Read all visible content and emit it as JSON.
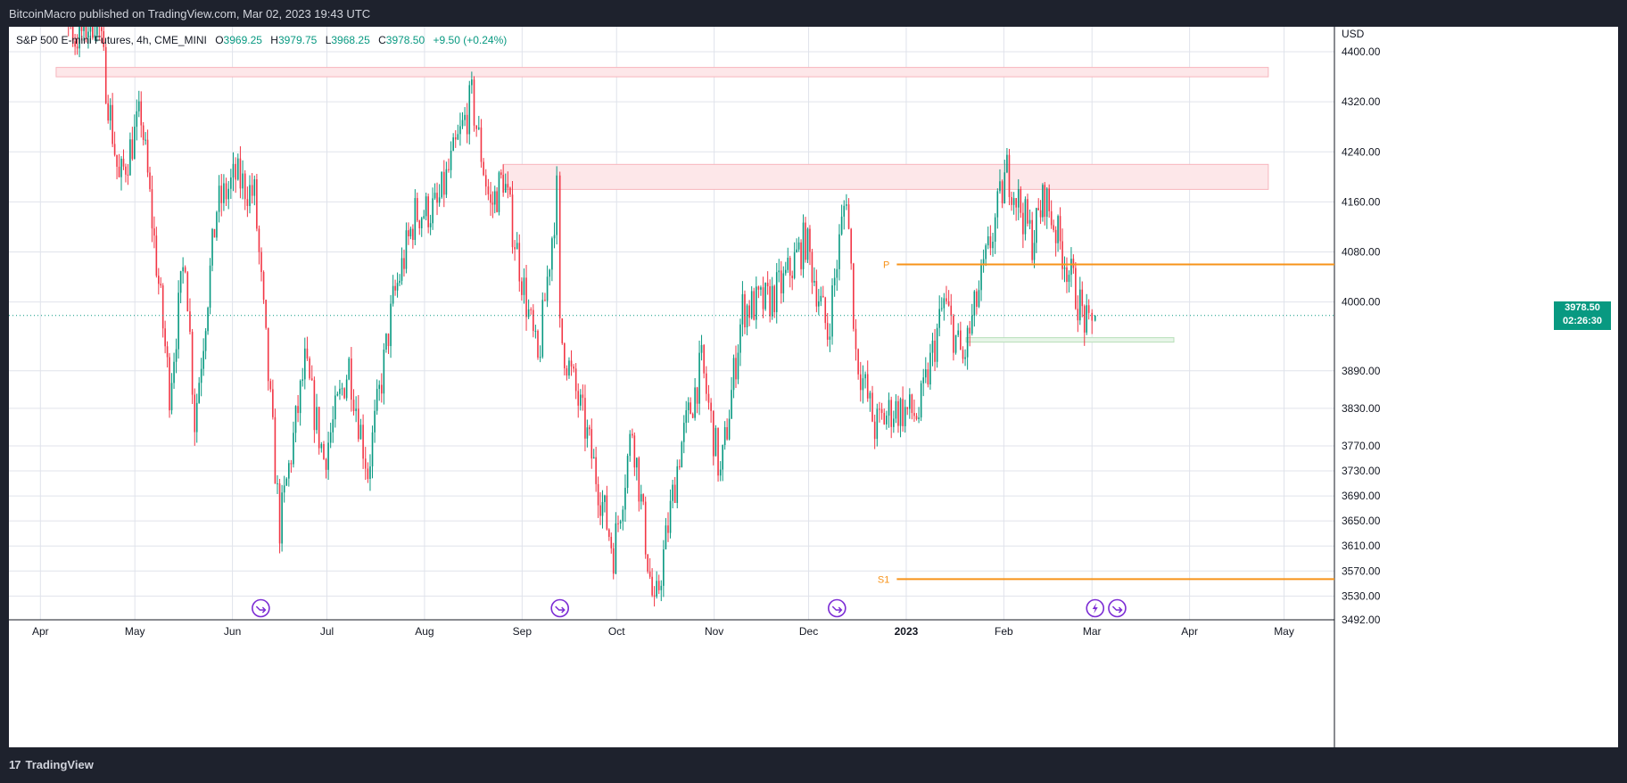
{
  "header": {
    "published_text": "BitcoinMacro published on TradingView.com, Mar 02, 2023 19:43 UTC"
  },
  "footer": {
    "brand_text": "TradingView",
    "brand_mark": "17"
  },
  "legend": {
    "symbol": "S&P 500 E-mini Futures, 4h, CME_MINI",
    "open_label": "O",
    "open": "3969.25",
    "high_label": "H",
    "high": "3979.75",
    "low_label": "L",
    "low": "3968.25",
    "close_label": "C",
    "close": "3978.50",
    "change": "+9.50 (+0.24%)"
  },
  "price_tag": {
    "price": "3978.50",
    "countdown": "02:26:30"
  },
  "colors": {
    "up": "#089981",
    "down": "#f23645",
    "level": "#f7931a",
    "grid": "#e0e3eb",
    "zone_red": "#fde7e9",
    "zone_green": "#e8f5e9"
  },
  "chart_data": {
    "type": "line",
    "title": "S&P 500 E-mini Futures, 4h, CME_MINI",
    "currency": "USD",
    "ylim": [
      3492,
      4440
    ],
    "y_ticks": [
      "4400.00",
      "4320.00",
      "4240.00",
      "4160.00",
      "4080.00",
      "4000.00",
      "3890.00",
      "3830.00",
      "3770.00",
      "3730.00",
      "3690.00",
      "3650.00",
      "3610.00",
      "3570.00",
      "3530.00",
      "3492.00"
    ],
    "x_ticks": [
      "Apr",
      "May",
      "Jun",
      "Jul",
      "Aug",
      "Sep",
      "Oct",
      "Nov",
      "Dec",
      "2023",
      "Feb",
      "Mar",
      "Apr",
      "May"
    ],
    "x_tick_dates": [
      "2022-04-01",
      "2022-05-01",
      "2022-06-01",
      "2022-07-01",
      "2022-08-01",
      "2022-09-01",
      "2022-10-01",
      "2022-11-01",
      "2022-12-01",
      "2023-01-01",
      "2023-02-01",
      "2023-03-01",
      "2023-04-01",
      "2023-05-01"
    ],
    "price_path": [
      {
        "date": "2022-03-29",
        "price": 4625
      },
      {
        "date": "2022-04-05",
        "price": 4540
      },
      {
        "date": "2022-04-12",
        "price": 4420
      },
      {
        "date": "2022-04-19",
        "price": 4460
      },
      {
        "date": "2022-04-26",
        "price": 4190
      },
      {
        "date": "2022-05-03",
        "price": 4300
      },
      {
        "date": "2022-05-12",
        "price": 3860
      },
      {
        "date": "2022-05-17",
        "price": 4080
      },
      {
        "date": "2022-05-20",
        "price": 3810
      },
      {
        "date": "2022-05-27",
        "price": 4150
      },
      {
        "date": "2022-06-02",
        "price": 4200
      },
      {
        "date": "2022-06-08",
        "price": 4170
      },
      {
        "date": "2022-06-16",
        "price": 3640
      },
      {
        "date": "2022-06-24",
        "price": 3900
      },
      {
        "date": "2022-06-30",
        "price": 3750
      },
      {
        "date": "2022-07-08",
        "price": 3900
      },
      {
        "date": "2022-07-14",
        "price": 3730
      },
      {
        "date": "2022-07-22",
        "price": 4000
      },
      {
        "date": "2022-07-29",
        "price": 4140
      },
      {
        "date": "2022-08-05",
        "price": 4150
      },
      {
        "date": "2022-08-16",
        "price": 4325
      },
      {
        "date": "2022-08-22",
        "price": 4150
      },
      {
        "date": "2022-08-26",
        "price": 4200
      },
      {
        "date": "2022-09-06",
        "price": 3900
      },
      {
        "date": "2022-09-12",
        "price": 4175
      },
      {
        "date": "2022-09-13",
        "price": 3950
      },
      {
        "date": "2022-09-21",
        "price": 3800
      },
      {
        "date": "2022-09-30",
        "price": 3600
      },
      {
        "date": "2022-10-06",
        "price": 3800
      },
      {
        "date": "2022-10-13",
        "price": 3500
      },
      {
        "date": "2022-10-21",
        "price": 3760
      },
      {
        "date": "2022-10-28",
        "price": 3900
      },
      {
        "date": "2022-11-03",
        "price": 3720
      },
      {
        "date": "2022-11-10",
        "price": 3990
      },
      {
        "date": "2022-11-18",
        "price": 4000
      },
      {
        "date": "2022-11-23",
        "price": 4030
      },
      {
        "date": "2022-11-30",
        "price": 4100
      },
      {
        "date": "2022-12-07",
        "price": 3950
      },
      {
        "date": "2022-12-13",
        "price": 4180
      },
      {
        "date": "2022-12-16",
        "price": 3920
      },
      {
        "date": "2022-12-22",
        "price": 3800
      },
      {
        "date": "2022-12-28",
        "price": 3830
      },
      {
        "date": "2023-01-05",
        "price": 3820
      },
      {
        "date": "2023-01-13",
        "price": 4000
      },
      {
        "date": "2023-01-19",
        "price": 3905
      },
      {
        "date": "2023-01-27",
        "price": 4080
      },
      {
        "date": "2023-02-02",
        "price": 4210
      },
      {
        "date": "2023-02-10",
        "price": 4100
      },
      {
        "date": "2023-02-14",
        "price": 4170
      },
      {
        "date": "2023-02-21",
        "price": 4060
      },
      {
        "date": "2023-02-28",
        "price": 3950
      },
      {
        "date": "2023-03-01",
        "price": 3960
      },
      {
        "date": "2023-03-02",
        "price": 3978.5
      }
    ],
    "zones": [
      {
        "kind": "resistance",
        "from": "2022-04-06",
        "to": "2023-04-26",
        "low": 4360,
        "high": 4375
      },
      {
        "kind": "resistance",
        "from": "2022-08-26",
        "to": "2023-04-26",
        "low": 4180,
        "high": 4220
      },
      {
        "kind": "support",
        "from": "2023-01-20",
        "to": "2023-03-27",
        "low": 3937,
        "high": 3943
      }
    ],
    "levels": [
      {
        "label": "P",
        "price": 4060,
        "from": "2022-12-29"
      },
      {
        "label": "S1",
        "price": 3557,
        "from": "2022-12-29"
      }
    ],
    "current_price": 3978.5,
    "event_markers": [
      {
        "date": "2022-06-10",
        "icon": "arrow-right-circle-icon"
      },
      {
        "date": "2022-09-13",
        "icon": "arrow-right-circle-icon"
      },
      {
        "date": "2022-12-10",
        "icon": "arrow-right-circle-icon"
      },
      {
        "date": "2023-03-02",
        "icon": "lightning-circle-icon"
      },
      {
        "date": "2023-03-09",
        "icon": "arrow-right-circle-icon"
      }
    ]
  }
}
